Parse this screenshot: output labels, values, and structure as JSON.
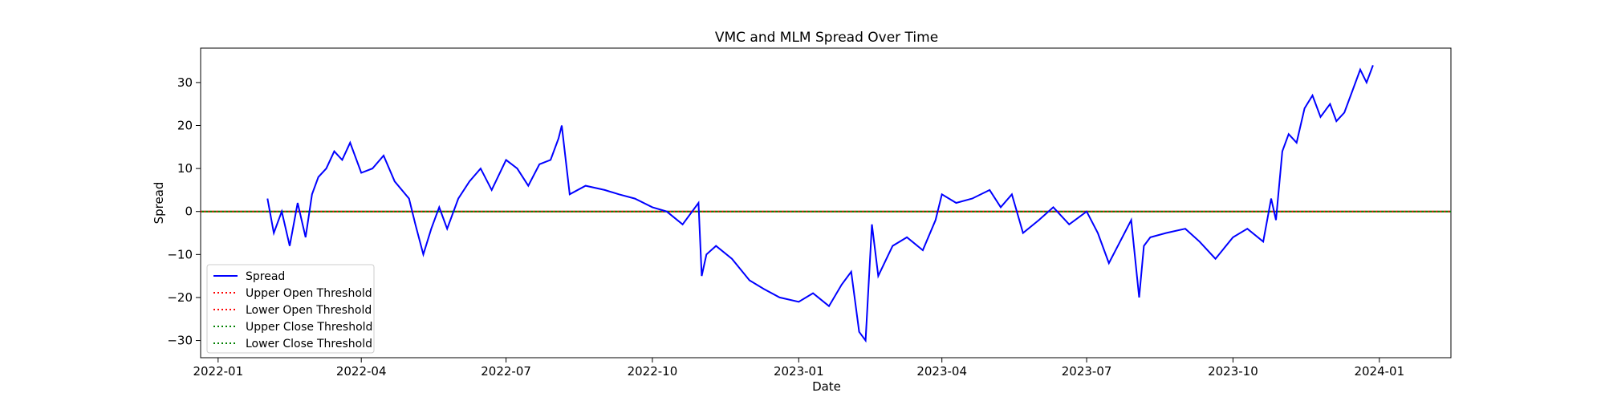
{
  "chart_data": {
    "type": "line",
    "title": "VMC and MLM Spread Over Time",
    "xlabel": "Date",
    "ylabel": "Spread",
    "xlim": [
      "2021-12-21",
      "2024-02-15"
    ],
    "ylim": [
      -34,
      38
    ],
    "x_ticks": [
      {
        "date": "2022-01-01",
        "label": "2022-01"
      },
      {
        "date": "2022-04-01",
        "label": "2022-04"
      },
      {
        "date": "2022-07-01",
        "label": "2022-07"
      },
      {
        "date": "2022-10-01",
        "label": "2022-10"
      },
      {
        "date": "2023-01-01",
        "label": "2023-01"
      },
      {
        "date": "2023-04-01",
        "label": "2023-04"
      },
      {
        "date": "2023-07-01",
        "label": "2023-07"
      },
      {
        "date": "2023-10-01",
        "label": "2023-10"
      },
      {
        "date": "2024-01-01",
        "label": "2024-01"
      }
    ],
    "y_ticks": [
      -30,
      -20,
      -10,
      0,
      10,
      20,
      30
    ],
    "legend_position": "lower-left",
    "grid": false,
    "series": [
      {
        "name": "Spread",
        "color": "#0000ff",
        "style": "solid",
        "x": [
          "2022-02-01",
          "2022-02-05",
          "2022-02-10",
          "2022-02-15",
          "2022-02-20",
          "2022-02-25",
          "2022-03-01",
          "2022-03-05",
          "2022-03-10",
          "2022-03-15",
          "2022-03-20",
          "2022-03-25",
          "2022-04-01",
          "2022-04-08",
          "2022-04-15",
          "2022-04-22",
          "2022-05-01",
          "2022-05-05",
          "2022-05-10",
          "2022-05-15",
          "2022-05-20",
          "2022-05-25",
          "2022-06-01",
          "2022-06-08",
          "2022-06-15",
          "2022-06-22",
          "2022-07-01",
          "2022-07-08",
          "2022-07-15",
          "2022-07-22",
          "2022-07-29",
          "2022-08-03",
          "2022-08-05",
          "2022-08-10",
          "2022-08-20",
          "2022-09-01",
          "2022-09-10",
          "2022-09-20",
          "2022-10-01",
          "2022-10-10",
          "2022-10-20",
          "2022-10-30",
          "2022-11-01",
          "2022-11-04",
          "2022-11-10",
          "2022-11-20",
          "2022-12-01",
          "2022-12-10",
          "2022-12-20",
          "2023-01-01",
          "2023-01-10",
          "2023-01-20",
          "2023-01-28",
          "2023-02-03",
          "2023-02-08",
          "2023-02-12",
          "2023-02-16",
          "2023-02-20",
          "2023-03-01",
          "2023-03-10",
          "2023-03-20",
          "2023-03-28",
          "2023-04-01",
          "2023-04-10",
          "2023-04-20",
          "2023-05-01",
          "2023-05-08",
          "2023-05-15",
          "2023-05-22",
          "2023-06-01",
          "2023-06-10",
          "2023-06-20",
          "2023-07-01",
          "2023-07-08",
          "2023-07-15",
          "2023-07-22",
          "2023-07-29",
          "2023-08-03",
          "2023-08-06",
          "2023-08-10",
          "2023-08-20",
          "2023-09-01",
          "2023-09-10",
          "2023-09-20",
          "2023-10-01",
          "2023-10-10",
          "2023-10-20",
          "2023-10-25",
          "2023-10-28",
          "2023-11-01",
          "2023-11-05",
          "2023-11-10",
          "2023-11-15",
          "2023-11-20",
          "2023-11-25",
          "2023-12-01",
          "2023-12-05",
          "2023-12-10",
          "2023-12-15",
          "2023-12-20",
          "2023-12-24",
          "2023-12-28"
        ],
        "values": [
          3,
          -5,
          0,
          -8,
          2,
          -6,
          4,
          8,
          10,
          14,
          12,
          16,
          9,
          10,
          13,
          7,
          3,
          -3,
          -10,
          -4,
          1,
          -4,
          3,
          7,
          10,
          5,
          12,
          10,
          6,
          11,
          12,
          17,
          20,
          4,
          6,
          5,
          4,
          3,
          1,
          0,
          -3,
          2,
          -15,
          -10,
          -8,
          -11,
          -16,
          -18,
          -20,
          -21,
          -19,
          -22,
          -17,
          -14,
          -28,
          -30,
          -3,
          -15,
          -8,
          -6,
          -9,
          -2,
          4,
          2,
          3,
          5,
          1,
          4,
          -5,
          -2,
          1,
          -3,
          0,
          -5,
          -12,
          -7,
          -2,
          -20,
          -8,
          -6,
          -5,
          -4,
          -7,
          -11,
          -6,
          -4,
          -7,
          3,
          -2,
          14,
          18,
          16,
          24,
          27,
          22,
          25,
          21,
          23,
          28,
          33,
          30,
          34
        ]
      },
      {
        "name": "Upper Open Threshold",
        "color": "#ff0000",
        "style": "dotted",
        "values": [
          0
        ]
      },
      {
        "name": "Lower Open Threshold",
        "color": "#ff0000",
        "style": "dotted",
        "values": [
          0
        ]
      },
      {
        "name": "Upper Close Threshold",
        "color": "#008000",
        "style": "dotted",
        "values": [
          0
        ]
      },
      {
        "name": "Lower Close Threshold",
        "color": "#008000",
        "style": "dotted",
        "values": [
          0
        ]
      }
    ]
  }
}
